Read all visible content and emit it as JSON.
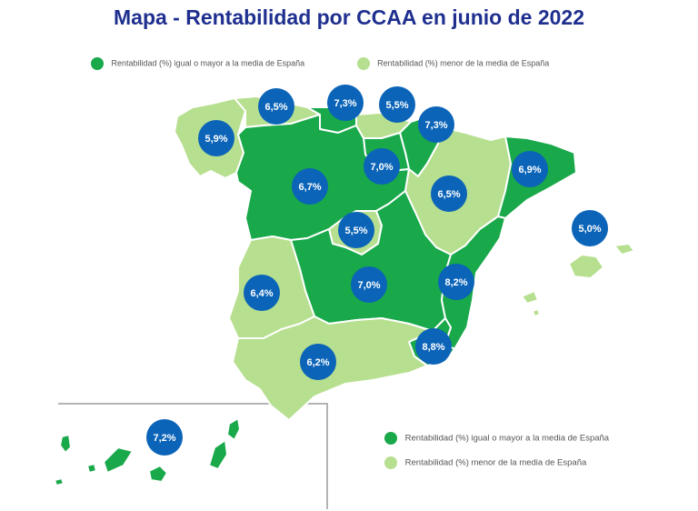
{
  "title": "Mapa - Rentabilidad por CCAA en junio de 2022",
  "colors": {
    "above": "#19a84a",
    "below": "#b6df8f",
    "badge": "#0b64b8",
    "title": "#1f2f8f"
  },
  "legend": {
    "above": "Rentabilidad (%) igual o mayor a la media de España",
    "below": "Rentabilidad (%) menor de la media de España"
  },
  "regions": [
    {
      "name": "Galicia",
      "value": "5,9%",
      "category": "below"
    },
    {
      "name": "Asturias",
      "value": "6,5%",
      "category": "below"
    },
    {
      "name": "Cantabria",
      "value": "7,3%",
      "category": "above"
    },
    {
      "name": "País Vasco",
      "value": "5,5%",
      "category": "below"
    },
    {
      "name": "Navarra",
      "value": "7,3%",
      "category": "above"
    },
    {
      "name": "La Rioja",
      "value": "7,0%",
      "category": "above"
    },
    {
      "name": "Castilla y León",
      "value": "6,7%",
      "category": "above"
    },
    {
      "name": "Aragón",
      "value": "6,5%",
      "category": "below"
    },
    {
      "name": "Cataluña",
      "value": "6,9%",
      "category": "above"
    },
    {
      "name": "Baleares",
      "value": "5,0%",
      "category": "below"
    },
    {
      "name": "Madrid",
      "value": "5,5%",
      "category": "below"
    },
    {
      "name": "Castilla-La Mancha",
      "value": "7,0%",
      "category": "above"
    },
    {
      "name": "C. Valenciana",
      "value": "8,2%",
      "category": "above"
    },
    {
      "name": "Extremadura",
      "value": "6,4%",
      "category": "below"
    },
    {
      "name": "Murcia",
      "value": "8,8%",
      "category": "above"
    },
    {
      "name": "Andalucía",
      "value": "6,2%",
      "category": "below"
    },
    {
      "name": "Canarias",
      "value": "7,2%",
      "category": "above"
    }
  ]
}
